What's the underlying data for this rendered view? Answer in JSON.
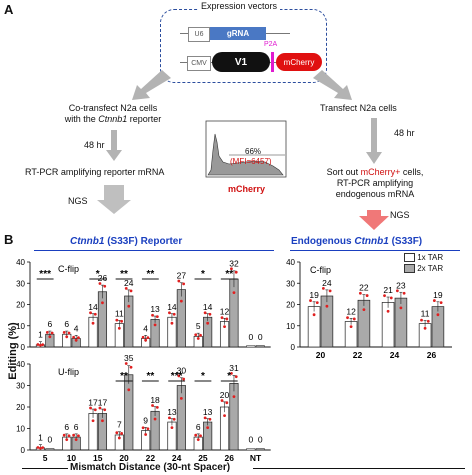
{
  "panel_a": {
    "letter": "A",
    "expression_vectors": "Expression vectors",
    "u6": "U6",
    "grna": "gRNA",
    "cmv": "CMV",
    "v1": "V1",
    "p2a": "P2A",
    "mcherry": "mCherry",
    "left": {
      "step1_a": "Co-transfect N2a cells",
      "step1_b_pre": "with the ",
      "step1_b_gene": "Ctnnb1",
      "step1_b_post": " reporter",
      "hr": "48 hr",
      "step2": "RT-PCR amplifying reporter mRNA",
      "ngs": "NGS"
    },
    "right": {
      "step1": "Transfect  N2a cells",
      "hr": "48 hr",
      "step2_pre": "Sort out ",
      "step2_red": "mCherry+",
      "step2_post": " cells,",
      "step2_b": "RT-PCR amplifying",
      "step2_c": "endogenous mRNA",
      "ngs": "NGS"
    },
    "histogram": {
      "pct": "66%",
      "mfi": "(MFI=6457)",
      "xlabel": "mCherry"
    }
  },
  "panel_b": {
    "letter": "B",
    "reporter_title_gene": "Ctnnb1",
    "reporter_title_rest": " (S33F)  Reporter",
    "endog_title_pre": "Endogenous ",
    "endog_title_gene": "Ctnnb1",
    "endog_title_post": " (S33F)",
    "ylabel": "Editing (%)",
    "xlabel": "Mismatch Distance (30-nt Spacer)",
    "legend": [
      "1x TAR",
      "2x TAR"
    ],
    "colors": {
      "bar1": "#ffffff",
      "bar2": "#a9a9a9",
      "dot": "#e02020",
      "blue": "#1a3fbf"
    }
  },
  "chart_data": [
    {
      "type": "bar",
      "title": "C-flip",
      "categories": [
        "5",
        "10",
        "15",
        "20",
        "22",
        "24",
        "25",
        "26",
        "NT"
      ],
      "series": [
        {
          "name": "1x TAR",
          "values": [
            1,
            6,
            14,
            11,
            4,
            14,
            5,
            12,
            0
          ]
        },
        {
          "name": "2x TAR",
          "values": [
            6,
            4,
            26,
            24,
            13,
            27,
            14,
            32,
            0
          ]
        }
      ],
      "significance": [
        "***",
        "",
        "*",
        "**",
        "**",
        "",
        "*",
        "**",
        ""
      ],
      "ylim": [
        0,
        40
      ],
      "yticks": [
        "0",
        "10",
        "20",
        "30",
        "40"
      ]
    },
    {
      "type": "bar",
      "title": "U-flip",
      "categories": [
        "5",
        "10",
        "15",
        "20",
        "22",
        "24",
        "25",
        "26",
        "NT"
      ],
      "series": [
        {
          "name": "1x TAR",
          "values": [
            1,
            6,
            17,
            7,
            9,
            13,
            6,
            20,
            0
          ]
        },
        {
          "name": "2x TAR",
          "values": [
            0,
            6,
            17,
            35,
            18,
            30,
            13,
            31,
            0
          ]
        }
      ],
      "significance": [
        "",
        "",
        "",
        "**",
        "**",
        "***",
        "*",
        "*",
        ""
      ],
      "ylim": [
        0,
        40
      ],
      "yticks": [
        "0",
        "10",
        "20",
        "30",
        "40"
      ]
    },
    {
      "type": "bar",
      "title": "C-flip",
      "categories": [
        "20",
        "22",
        "24",
        "26"
      ],
      "series": [
        {
          "name": "1x TAR",
          "values": [
            19,
            12,
            21,
            11
          ]
        },
        {
          "name": "2x TAR",
          "values": [
            24,
            22,
            23,
            19
          ]
        }
      ],
      "ylim": [
        0,
        40
      ],
      "yticks": [
        "0",
        "10",
        "20",
        "30",
        "40"
      ]
    }
  ]
}
